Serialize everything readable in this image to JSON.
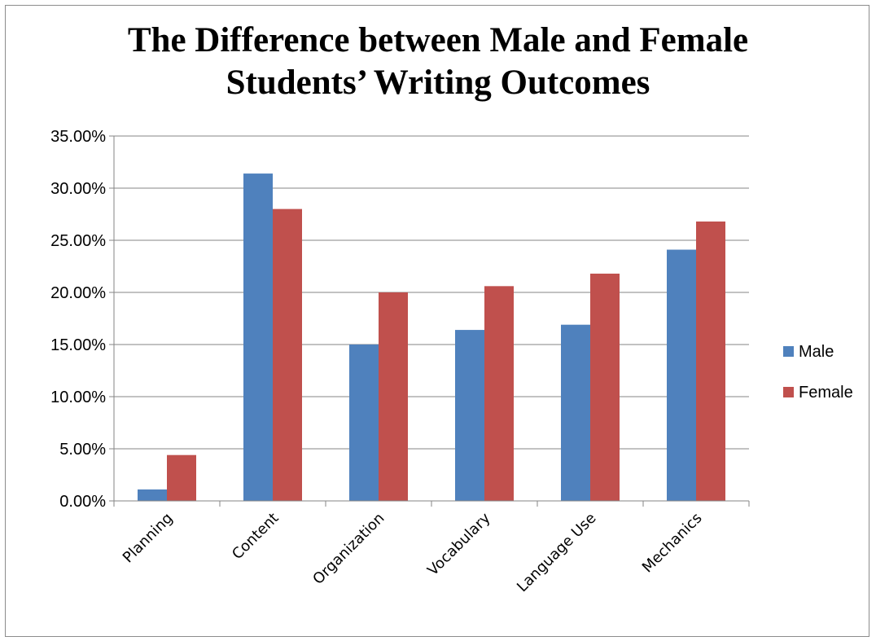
{
  "chart_data": {
    "type": "bar",
    "title_lines": [
      "The Difference between Male and Female",
      "Students’ Writing Outcomes"
    ],
    "categories": [
      "Planning",
      "Content",
      "Organization",
      "Vocabulary",
      "Language Use",
      "Mechanics"
    ],
    "series": [
      {
        "name": "Male",
        "color": "#4f81bd",
        "values": [
          0.011,
          0.314,
          0.15,
          0.164,
          0.169,
          0.241
        ]
      },
      {
        "name": "Female",
        "color": "#c0504d",
        "values": [
          0.044,
          0.28,
          0.2,
          0.206,
          0.218,
          0.268
        ]
      }
    ],
    "yticks": [
      "0.00%",
      "5.00%",
      "10.00%",
      "15.00%",
      "20.00%",
      "25.00%",
      "30.00%",
      "35.00%"
    ],
    "ylim": [
      0,
      0.35
    ],
    "grid": true,
    "legend_position": "right"
  }
}
